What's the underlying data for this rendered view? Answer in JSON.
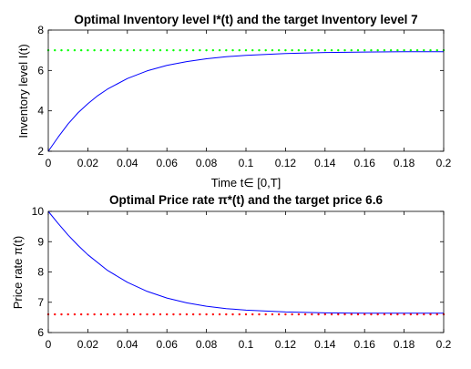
{
  "chart_data": [
    {
      "type": "line",
      "title": "Optimal Inventory level I*(t) and the target Inventory level 7",
      "xlabel": "Time t∈ [0,T]",
      "ylabel": "Inventory level I(t)",
      "xlim": [
        0,
        0.2
      ],
      "ylim": [
        2,
        8
      ],
      "xticks": [
        0,
        0.02,
        0.04,
        0.06,
        0.08,
        0.1,
        0.12,
        0.14,
        0.16,
        0.18,
        0.2
      ],
      "xtick_labels": [
        "0",
        "0.02",
        "0.04",
        "0.06",
        "0.08",
        "0.1",
        "0.12",
        "0.14",
        "0.16",
        "0.18",
        "0.2"
      ],
      "yticks": [
        2,
        4,
        6,
        8
      ],
      "ytick_labels": [
        "2",
        "4",
        "6",
        "8"
      ],
      "grid": false,
      "series": [
        {
          "style": "solid",
          "color": "#0000ff",
          "x": [
            0,
            0.005,
            0.01,
            0.015,
            0.02,
            0.025,
            0.03,
            0.04,
            0.05,
            0.06,
            0.07,
            0.08,
            0.09,
            0.1,
            0.12,
            0.14,
            0.16,
            0.18,
            0.2
          ],
          "y": [
            2.0,
            2.7,
            3.35,
            3.9,
            4.35,
            4.75,
            5.08,
            5.6,
            5.98,
            6.25,
            6.44,
            6.58,
            6.68,
            6.75,
            6.84,
            6.89,
            6.91,
            6.93,
            6.93
          ]
        },
        {
          "style": "dotted",
          "color": "#00ff00",
          "x": [
            0,
            0.2
          ],
          "y": [
            7,
            7
          ]
        }
      ]
    },
    {
      "type": "line",
      "title": "Optimal Price rate π*(t) and the target price 6.6",
      "xlabel": "",
      "ylabel": "Price rate π(t)",
      "xlim": [
        0,
        0.2
      ],
      "ylim": [
        6,
        10
      ],
      "xticks": [
        0,
        0.02,
        0.04,
        0.06,
        0.08,
        0.1,
        0.12,
        0.14,
        0.16,
        0.18,
        0.2
      ],
      "xtick_labels": [
        "0",
        "0.02",
        "0.04",
        "0.06",
        "0.08",
        "0.1",
        "0.12",
        "0.14",
        "0.16",
        "0.18",
        "0.2"
      ],
      "yticks": [
        6,
        7,
        8,
        9,
        10
      ],
      "ytick_labels": [
        "6",
        "7",
        "8",
        "9",
        "10"
      ],
      "grid": false,
      "series": [
        {
          "style": "solid",
          "color": "#0000ff",
          "x": [
            0,
            0.005,
            0.01,
            0.015,
            0.02,
            0.03,
            0.04,
            0.05,
            0.06,
            0.07,
            0.08,
            0.09,
            0.1,
            0.12,
            0.14,
            0.16,
            0.18,
            0.2
          ],
          "y": [
            10.0,
            9.6,
            9.22,
            8.88,
            8.57,
            8.05,
            7.66,
            7.36,
            7.14,
            6.98,
            6.87,
            6.79,
            6.74,
            6.68,
            6.65,
            6.64,
            6.64,
            6.64
          ]
        },
        {
          "style": "dotted",
          "color": "#ff0000",
          "x": [
            0,
            0.2
          ],
          "y": [
            6.6,
            6.6
          ]
        }
      ]
    }
  ]
}
